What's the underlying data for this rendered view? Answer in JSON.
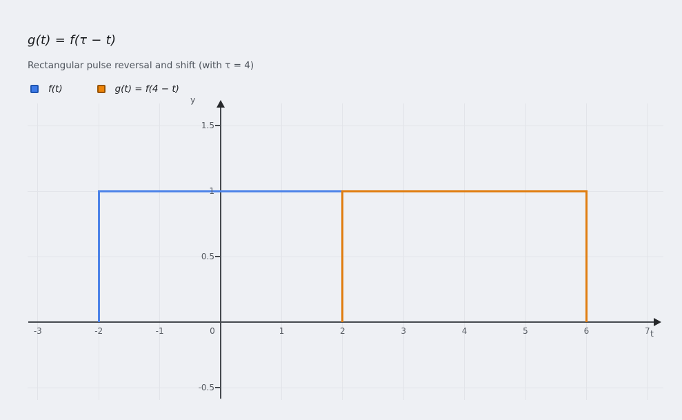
{
  "page": {
    "background": "#eef0f4"
  },
  "header": {
    "title": "g(t) = f(τ − t)",
    "subtitle": "Rectangular pulse reversal and shift (with τ = 4)"
  },
  "legend": {
    "items": [
      {
        "label": "f(t)",
        "color": "#3d7ae8",
        "border": "#1f55b0"
      },
      {
        "label": "g(t) = f(4 − t)",
        "color": "#ee8408",
        "border": "#965405"
      }
    ]
  },
  "chart_data": {
    "type": "line",
    "title": "g(t) = f(τ − t)",
    "subtitle": "Rectangular pulse reversal and shift (with τ = 4)",
    "xlabel": "t",
    "ylabel": "y",
    "xlim": [
      -3.2,
      7.3
    ],
    "ylim": [
      -0.6,
      1.67
    ],
    "x_ticks": [
      -3,
      -2,
      -1,
      0,
      1,
      2,
      3,
      4,
      5,
      6,
      7
    ],
    "y_ticks": [
      -0.5,
      0.5,
      1,
      1.5
    ],
    "grid": true,
    "legend_position": "top-left",
    "series": [
      {
        "name": "f(t)",
        "color": "#4d83e8",
        "shape": "rectangular-pulse",
        "points": [
          [
            -2,
            0
          ],
          [
            -2,
            1
          ],
          [
            2,
            1
          ],
          [
            2,
            0
          ]
        ]
      },
      {
        "name": "g(t) = f(4 − t)",
        "color": "#e07d10",
        "shape": "rectangular-pulse",
        "points": [
          [
            2,
            0
          ],
          [
            2,
            1
          ],
          [
            6,
            1
          ],
          [
            6,
            0
          ]
        ]
      }
    ],
    "pulse_amplitude": 1,
    "tau": 4,
    "axis_color": "#45494e",
    "grid_color": "#e2e4e9"
  }
}
